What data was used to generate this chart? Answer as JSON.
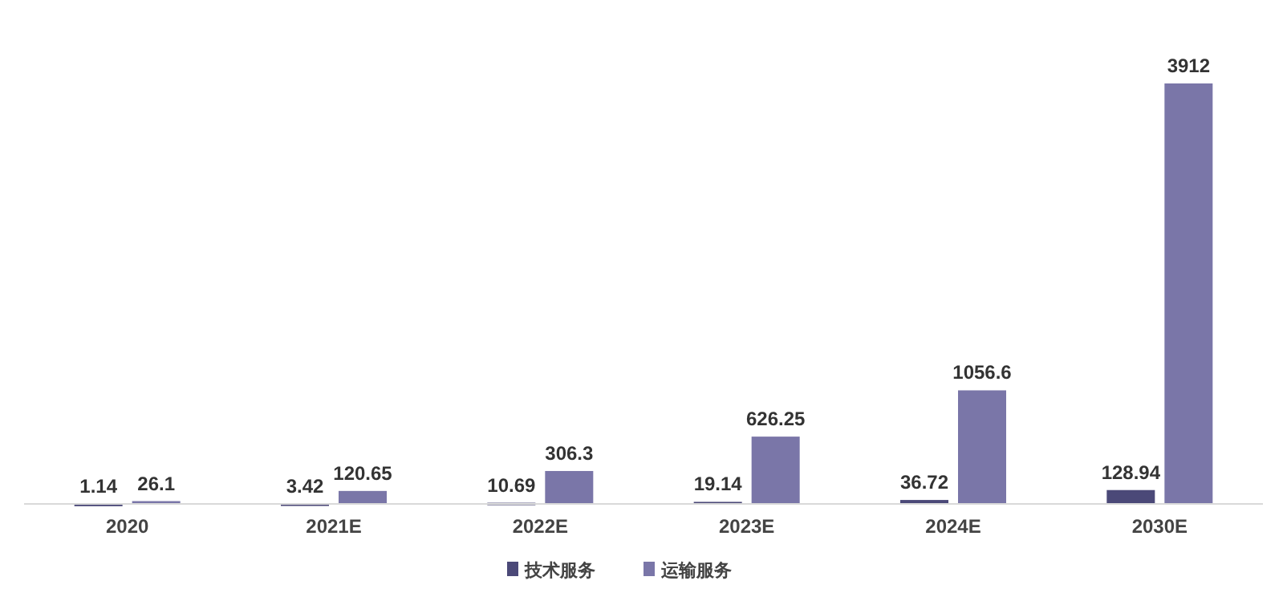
{
  "chart_data": {
    "type": "bar",
    "categories": [
      "2020",
      "2021E",
      "2022E",
      "2023E",
      "2024E",
      "2030E"
    ],
    "series": [
      {
        "name": "技术服务",
        "color": "#4b4978",
        "values": [
          1.14,
          3.42,
          10.69,
          19.14,
          36.72,
          128.94
        ]
      },
      {
        "name": "运输服务",
        "color": "#7a76a8",
        "values": [
          26.1,
          120.65,
          306.3,
          626.25,
          1056.6,
          3912
        ]
      }
    ],
    "tick_labels": "x",
    "data_labels": true,
    "legend": "bottom"
  }
}
